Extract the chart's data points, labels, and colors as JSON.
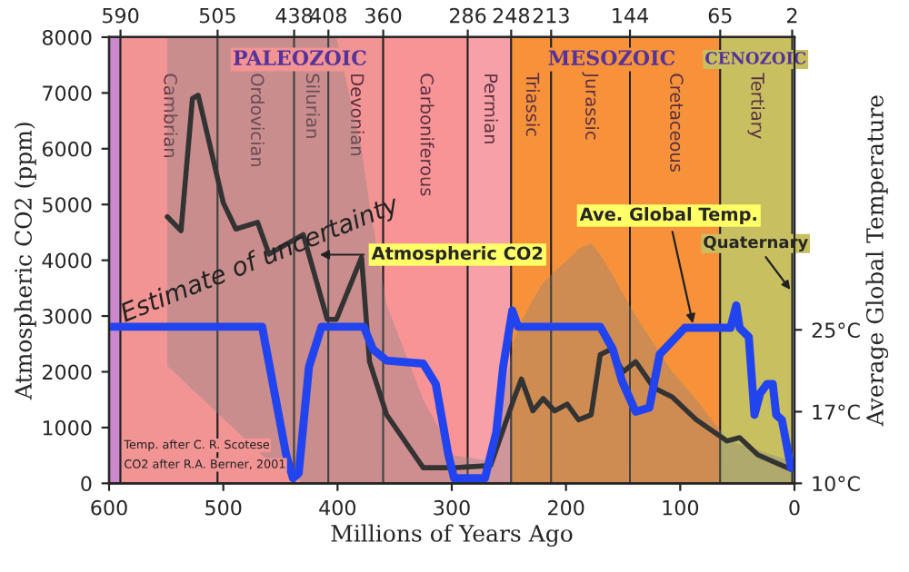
{
  "chart_data": {
    "type": "line",
    "xlabel": "Millions of Years Ago",
    "ylabel": "Atmospheric CO2 (ppm)",
    "y2label": "Average Global Temperature",
    "xlim": [
      600,
      0
    ],
    "xticks": [
      600,
      500,
      400,
      300,
      200,
      100,
      0
    ],
    "ylim": [
      0,
      8000
    ],
    "yticks": [
      0,
      1000,
      2000,
      3000,
      4000,
      5000,
      6000,
      7000,
      8000
    ],
    "y2lim": [
      10,
      53.6
    ],
    "y2ticks": [
      {
        "value": 10,
        "label": "10°C"
      },
      {
        "value": 17,
        "label": "17°C"
      },
      {
        "value": 25,
        "label": "25°C"
      }
    ],
    "x2lim": [
      600,
      0
    ],
    "x2ticks": [
      590,
      505,
      438,
      408,
      360,
      286,
      248,
      213,
      144,
      65,
      2
    ],
    "series": [
      {
        "color": "#333333",
        "x": [
          549,
          537,
          527,
          522,
          500,
          489,
          470,
          460,
          430,
          409,
          401,
          379,
          372,
          357,
          325,
          301,
          298,
          266,
          245,
          239,
          229,
          220,
          210,
          199,
          189,
          178,
          170,
          161,
          150,
          139,
          123,
          107,
          86,
          59,
          48,
          32,
          3
        ],
        "values": [
          4780,
          4530,
          6900,
          6960,
          5030,
          4560,
          4680,
          4110,
          4460,
          2940,
          2940,
          4050,
          2180,
          1230,
          280,
          280,
          280,
          320,
          1550,
          1870,
          1300,
          1520,
          1300,
          1420,
          1140,
          1230,
          2310,
          2400,
          2000,
          2180,
          1710,
          1550,
          1140,
          760,
          820,
          510,
          250
        ],
        "lower": [
          2100,
          1880,
          1680,
          1590,
          1160,
          950,
          580,
          390,
          0,
          0,
          0,
          0,
          0,
          0,
          0,
          0,
          0,
          0,
          0,
          0,
          0,
          0,
          0,
          0,
          0,
          0,
          0,
          0,
          0,
          0,
          0,
          0,
          0,
          0,
          0,
          0,
          0
        ],
        "upper": [
          8000,
          8000,
          8000,
          8000,
          8000,
          8000,
          8000,
          8000,
          8000,
          8000,
          8000,
          6000,
          5000,
          3200,
          1500,
          600,
          500,
          400,
          2600,
          2900,
          3300,
          3600,
          3800,
          4000,
          4200,
          4300,
          4100,
          3800,
          3400,
          3000,
          2500,
          2000,
          1500,
          800,
          700,
          600,
          400
        ]
      },
      {
        "color": "#2244ee",
        "axis": "y2",
        "x": [
          600,
          466,
          445,
          439,
          434,
          425,
          414,
          377,
          369,
          357,
          325,
          314,
          303,
          298,
          271,
          261,
          255,
          247,
          242,
          170,
          159,
          151,
          139,
          127,
          118,
          96,
          56,
          51,
          48,
          40,
          35,
          30,
          24,
          19,
          16,
          11,
          3,
          0
        ],
        "values": [
          25.3,
          25.3,
          12.8,
          10.5,
          11,
          21.4,
          25.3,
          25.3,
          23.1,
          22,
          21.7,
          19.7,
          12.8,
          10.5,
          10.5,
          15,
          21.4,
          26.9,
          25.3,
          25.3,
          23.1,
          20,
          17,
          17.4,
          22.6,
          25.2,
          25.2,
          27.4,
          25.2,
          24.3,
          16.7,
          18.8,
          19.7,
          19.7,
          16.7,
          16.2,
          11.5,
          12
        ]
      }
    ],
    "bands": [
      {
        "axis": "x",
        "from": 600,
        "to": 590,
        "label": null,
        "color": "#cc88cc"
      },
      {
        "axis": "x",
        "from": 590,
        "to": 505,
        "label": "Cambrian",
        "color": "#f29494"
      },
      {
        "axis": "x",
        "from": 505,
        "to": 438,
        "label": "Ordovician",
        "color": "#f29494"
      },
      {
        "axis": "x",
        "from": 438,
        "to": 408,
        "label": "Silurian",
        "color": "#f29494"
      },
      {
        "axis": "x",
        "from": 408,
        "to": 360,
        "label": "Devonian",
        "color": "#f29494"
      },
      {
        "axis": "x",
        "from": 360,
        "to": 286,
        "label": "Carboniferous",
        "color": "#f89496"
      },
      {
        "axis": "x",
        "from": 286,
        "to": 248,
        "label": "Permian",
        "color": "#f8a0a8"
      },
      {
        "axis": "x",
        "from": 248,
        "to": 213,
        "label": "Triassic",
        "color": "#f8923a"
      },
      {
        "axis": "x",
        "from": 213,
        "to": 144,
        "label": "Jurassic",
        "color": "#f8923a"
      },
      {
        "axis": "x",
        "from": 144,
        "to": 65,
        "label": "Cretaceous",
        "color": "#f8923a"
      },
      {
        "axis": "x",
        "from": 65,
        "to": 2,
        "label": "Tertiary",
        "color": "#c8c060"
      }
    ],
    "annotations": [
      "PALEOZOIC",
      "MESOZOIC",
      "CENOZOIC",
      "Estimate of uncertainty",
      {
        "text": "Atmospheric CO2",
        "x": 420,
        "y": 4100
      },
      {
        "text": "Ave. Global Temp.",
        "x": 88,
        "y": 2780
      },
      {
        "text": "Quaternary",
        "x": 1,
        "y": 3400
      },
      "Temp. after C. R. Scotese",
      "CO2 after R.A. Berner, 2001"
    ]
  }
}
